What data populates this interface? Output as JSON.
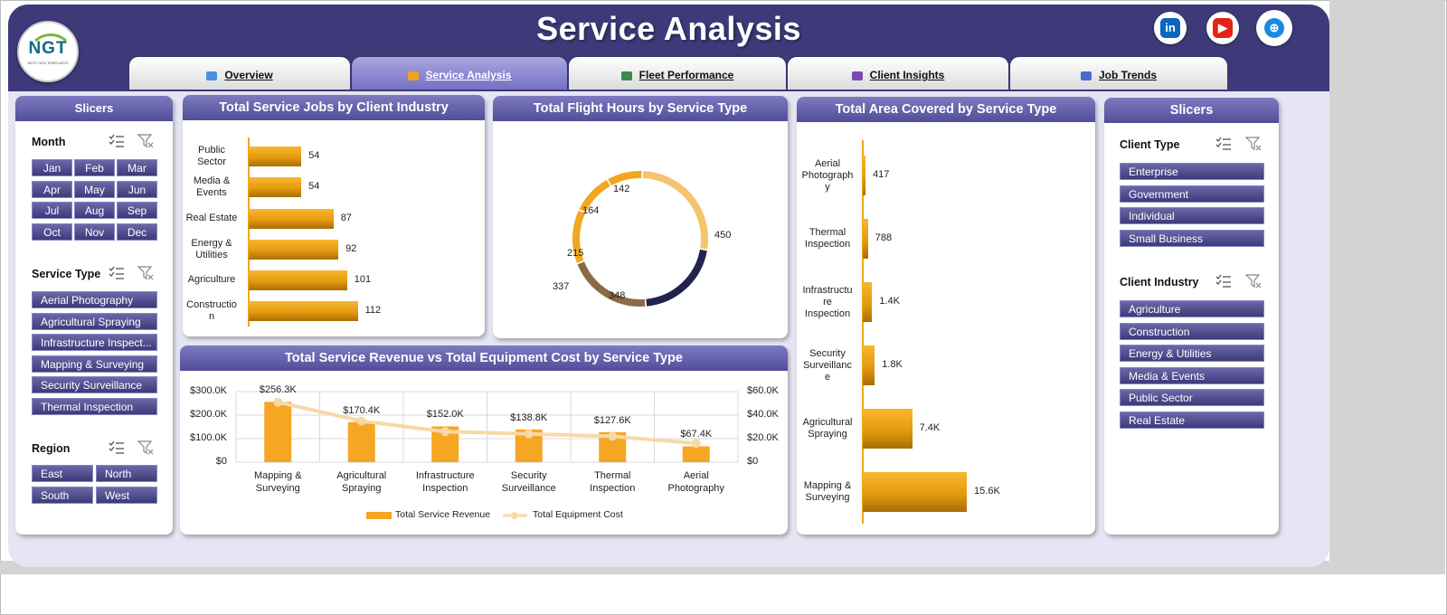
{
  "title": "Service Analysis",
  "logo": {
    "text": "NGT",
    "sub": "NEXT GEN TEMPLATES"
  },
  "social": [
    {
      "name": "linkedin-icon",
      "glyph": "in",
      "color": "#0a66c2"
    },
    {
      "name": "youtube-icon",
      "glyph": "▶",
      "color": "#e62117"
    },
    {
      "name": "globe-icon",
      "glyph": "⊕",
      "color": "#1e88e5"
    }
  ],
  "tabs": [
    {
      "label": "Overview",
      "icon": "#4a90d9"
    },
    {
      "label": "Service Analysis",
      "icon": "#f0a020"
    },
    {
      "label": "Fleet Performance",
      "icon": "#3a8a4a"
    },
    {
      "label": "Client Insights",
      "icon": "#7a4ab0"
    },
    {
      "label": "Job Trends",
      "icon": "#4a6ad0"
    }
  ],
  "colors": {
    "header": "#3e3a7a",
    "accent": "#f5a623",
    "donut_light": "#f5c46e",
    "donut_dark": "#22224e",
    "donut_brown": "#8b6a45",
    "line": "#f7d9a8"
  },
  "left_slicers": {
    "title": "Slicers",
    "month": {
      "label": "Month",
      "items": [
        "Jan",
        "Feb",
        "Mar",
        "Apr",
        "May",
        "Jun",
        "Jul",
        "Aug",
        "Sep",
        "Oct",
        "Nov",
        "Dec"
      ]
    },
    "service_type": {
      "label": "Service Type",
      "items": [
        "Aerial Photography",
        "Agricultural Spraying",
        "Infrastructure Inspect...",
        "Mapping & Surveying",
        "Security Surveillance",
        "Thermal Inspection"
      ]
    },
    "region": {
      "label": "Region",
      "items": [
        "East",
        "North",
        "South",
        "West"
      ]
    }
  },
  "right_slicers": {
    "title": "Slicers",
    "client_type": {
      "label": "Client Type",
      "items": [
        "Enterprise",
        "Government",
        "Individual",
        "Small Business"
      ]
    },
    "client_industry": {
      "label": "Client Industry",
      "items": [
        "Agriculture",
        "Construction",
        "Energy & Utilities",
        "Media & Events",
        "Public Sector",
        "Real Estate"
      ]
    }
  },
  "chart_data": [
    {
      "id": "jobs_by_industry",
      "type": "bar",
      "orientation": "horizontal",
      "title": "Total Service Jobs by Client Industry",
      "categories": [
        [
          "Public",
          "Sector"
        ],
        [
          "Media &",
          "Events"
        ],
        [
          "Real Estate"
        ],
        [
          "Energy &",
          "Utilities"
        ],
        [
          "Agriculture"
        ],
        [
          "Constructio",
          "n"
        ]
      ],
      "values": [
        54,
        54,
        87,
        92,
        101,
        112
      ],
      "labels": [
        "54",
        "54",
        "87",
        "92",
        "101",
        "112"
      ],
      "xlim": [
        0,
        130
      ]
    },
    {
      "id": "flight_hours",
      "type": "pie",
      "donut": true,
      "title": "Total Flight Hours by Service Type",
      "values": [
        450,
        348,
        337,
        215,
        164,
        142
      ],
      "labels": [
        "450",
        "348",
        "337",
        "215",
        "164",
        "142"
      ],
      "colors": [
        "#f5c46e",
        "#22224e",
        "#8b6a45",
        "#f0a81e",
        "#f0a81e",
        "#f0a81e"
      ]
    },
    {
      "id": "area_covered",
      "type": "bar",
      "orientation": "horizontal",
      "title": "Total Area Covered by Service Type",
      "categories": [
        [
          "Aerial",
          "Photograph",
          "y"
        ],
        [
          "Thermal",
          "Inspection"
        ],
        [
          "Infrastructu",
          "re",
          "Inspection"
        ],
        [
          "Security",
          "Surveillanc",
          "e"
        ],
        [
          "Agricultural",
          "Spraying"
        ],
        [
          "Mapping &",
          "Surveying"
        ]
      ],
      "values": [
        417,
        788,
        1400,
        1800,
        7400,
        15600
      ],
      "labels": [
        "417",
        "788",
        "1.4K",
        "1.8K",
        "7.4K",
        "15.6K"
      ],
      "xlim": [
        0,
        16000
      ]
    },
    {
      "id": "revenue_vs_cost",
      "type": "bar",
      "title": "Total Service Revenue vs Total Equipment Cost by Service Type",
      "categories": [
        [
          "Mapping &",
          "Surveying"
        ],
        [
          "Agricultural",
          "Spraying"
        ],
        [
          "Infrastructure",
          "Inspection"
        ],
        [
          "Security",
          "Surveillance"
        ],
        [
          "Thermal Inspection"
        ],
        [
          "Aerial Photography"
        ]
      ],
      "series": [
        {
          "name": "Total Service Revenue",
          "type": "bar",
          "axis": "left",
          "values": [
            256300,
            170400,
            152000,
            138800,
            127600,
            67400
          ],
          "labels": [
            "$256.3K",
            "$170.4K",
            "$152.0K",
            "$138.8K",
            "$127.6K",
            "$67.4K"
          ]
        },
        {
          "name": "Total Equipment Cost",
          "type": "line",
          "axis": "right",
          "values": [
            51000,
            35000,
            26000,
            24000,
            22000,
            16000
          ]
        }
      ],
      "left_ticks": [
        "$0",
        "$100.0K",
        "$200.0K",
        "$300.0K"
      ],
      "right_ticks": [
        "$0",
        "$20.0K",
        "$40.0K",
        "$60.0K"
      ],
      "ylim_left": [
        0,
        300000
      ],
      "ylim_right": [
        0,
        60000
      ],
      "legend": "bottom"
    }
  ]
}
